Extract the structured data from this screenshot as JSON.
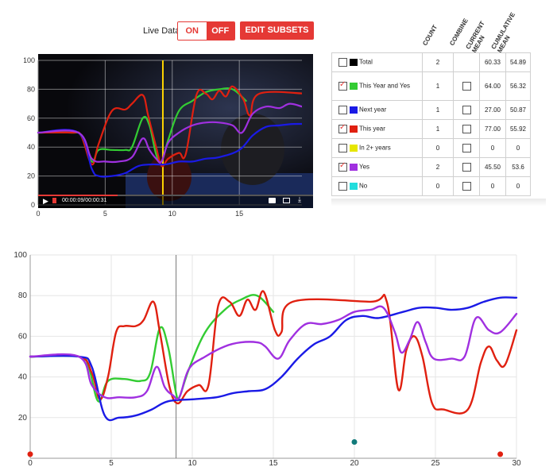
{
  "controls": {
    "live_data_label": "Live Data",
    "on_label": "ON",
    "off_label": "OFF",
    "edit_subsets_label": "EDIT SUBSETS"
  },
  "player": {
    "time_text": "00:00:09/00:00:31",
    "icons": [
      "play-icon",
      "volume-icon",
      "caption-icon",
      "image-icon",
      "download-icon"
    ]
  },
  "table": {
    "headers": [
      "COUNT",
      "COMBINE",
      "CURRENT MEAN",
      "CUMULATIVE MEAN"
    ],
    "rows": [
      {
        "checked": false,
        "color": "#000000",
        "label": "Total",
        "count": "2",
        "combine": null,
        "current": "60.33",
        "cumulative": "54.89"
      },
      {
        "checked": true,
        "color": "#33cc33",
        "label": "This Year and Yes",
        "count": "1",
        "combine": false,
        "current": "64.00",
        "cumulative": "56.32"
      },
      {
        "checked": false,
        "color": "#1a1ae6",
        "label": "Next year",
        "count": "1",
        "combine": false,
        "current": "27.00",
        "cumulative": "50.87"
      },
      {
        "checked": true,
        "color": "#e02010",
        "label": "This year",
        "count": "1",
        "combine": false,
        "current": "77.00",
        "cumulative": "55.92"
      },
      {
        "checked": false,
        "color": "#e6e600",
        "label": "In 2+ years",
        "count": "0",
        "combine": false,
        "current": "0",
        "cumulative": "0"
      },
      {
        "checked": true,
        "color": "#a030e0",
        "label": "Yes",
        "count": "2",
        "combine": false,
        "current": "45.50",
        "cumulative": "53.6"
      },
      {
        "checked": false,
        "color": "#22dddd",
        "label": "No",
        "count": "0",
        "combine": false,
        "current": "0",
        "cumulative": "0"
      }
    ]
  },
  "chart_data": [
    {
      "type": "line",
      "xlim": [
        0,
        20.5
      ],
      "ylim": [
        0,
        100
      ],
      "x_ticks": [
        0,
        5,
        10,
        15
      ],
      "y_ticks": [
        0,
        20,
        40,
        60,
        80,
        100
      ],
      "grid": true,
      "cursor_x": 9.3,
      "cursor_color": "#ffd400",
      "series": [
        {
          "color": "#33cc33",
          "points": [
            [
              0,
              50
            ],
            [
              2.5,
              50
            ],
            [
              3.2,
              48
            ],
            [
              4,
              30
            ],
            [
              4.5,
              38
            ],
            [
              5.5,
              38
            ],
            [
              6.5,
              38
            ],
            [
              7,
              40
            ],
            [
              7.8,
              60
            ],
            [
              8.3,
              55
            ],
            [
              8.8,
              35
            ],
            [
              9.2,
              30
            ],
            [
              9.7,
              45
            ],
            [
              10.5,
              65
            ],
            [
              11.5,
              72
            ],
            [
              12.5,
              78
            ],
            [
              13.5,
              80
            ],
            [
              14.5,
              80
            ],
            [
              15.5,
              72
            ]
          ]
        },
        {
          "color": "#e02010",
          "points": [
            [
              0,
              50
            ],
            [
              2.5,
              50
            ],
            [
              3.2,
              48
            ],
            [
              4,
              28
            ],
            [
              4.5,
              42
            ],
            [
              5.5,
              65
            ],
            [
              6.5,
              66
            ],
            [
              7,
              70
            ],
            [
              7.8,
              76
            ],
            [
              8.2,
              62
            ],
            [
              8.8,
              40
            ],
            [
              9.2,
              27
            ],
            [
              9.7,
              32
            ],
            [
              10.5,
              36
            ],
            [
              11,
              35
            ],
            [
              11.8,
              76
            ],
            [
              12.5,
              77
            ],
            [
              13,
              73
            ],
            [
              13.5,
              79
            ],
            [
              14,
              75
            ],
            [
              14.5,
              82
            ],
            [
              15.3,
              73
            ],
            [
              15.8,
              62
            ],
            [
              16.5,
              77
            ],
            [
              20,
              77
            ]
          ]
        },
        {
          "color": "#1a1ae6",
          "points": [
            [
              0,
              50
            ],
            [
              3,
              50
            ],
            [
              4,
              25
            ],
            [
              4.5,
              20
            ],
            [
              5.5,
              20
            ],
            [
              6.5,
              22
            ],
            [
              7.5,
              27
            ],
            [
              8.5,
              28
            ],
            [
              9.5,
              28
            ],
            [
              10.5,
              30
            ],
            [
              11.5,
              30
            ],
            [
              12.5,
              32
            ],
            [
              13.5,
              33
            ],
            [
              15,
              38
            ],
            [
              16,
              48
            ],
            [
              17,
              54
            ],
            [
              18,
              55
            ],
            [
              19,
              56
            ],
            [
              20,
              56
            ]
          ]
        },
        {
          "color": "#a030e0",
          "points": [
            [
              0,
              50
            ],
            [
              3,
              50
            ],
            [
              4,
              32
            ],
            [
              5,
              30
            ],
            [
              6,
              30
            ],
            [
              7,
              33
            ],
            [
              7.8,
              46
            ],
            [
              8.3,
              38
            ],
            [
              8.8,
              32
            ],
            [
              9.2,
              30
            ],
            [
              9.7,
              43
            ],
            [
              10.5,
              50
            ],
            [
              11.5,
              55
            ],
            [
              12.5,
              57
            ],
            [
              13.5,
              57
            ],
            [
              14.5,
              55
            ],
            [
              15.2,
              50
            ],
            [
              16,
              63
            ],
            [
              17,
              68
            ],
            [
              18,
              67
            ],
            [
              18.8,
              70
            ],
            [
              20,
              67
            ]
          ]
        }
      ]
    },
    {
      "type": "line",
      "xlim": [
        0,
        30
      ],
      "ylim": [
        0,
        100
      ],
      "x_ticks": [
        0,
        5,
        10,
        15,
        20,
        25,
        30
      ],
      "y_ticks": [
        20,
        40,
        60,
        80,
        100
      ],
      "grid": true,
      "cursor_x": 9,
      "cursor_color": "#777777",
      "markers": [
        {
          "x": 0,
          "y": 2,
          "color": "#e02010"
        },
        {
          "x": 20,
          "y": 8,
          "color": "#117a7a"
        },
        {
          "x": 29,
          "y": 2,
          "color": "#e02010"
        }
      ],
      "series": [
        {
          "color": "#33cc33",
          "points": [
            [
              0,
              50
            ],
            [
              3,
              50
            ],
            [
              3.6,
              45
            ],
            [
              4.2,
              28
            ],
            [
              4.8,
              38
            ],
            [
              5.8,
              39
            ],
            [
              6.8,
              38
            ],
            [
              7.4,
              42
            ],
            [
              8,
              64
            ],
            [
              8.5,
              55
            ],
            [
              9,
              32
            ],
            [
              9.2,
              30
            ],
            [
              9.8,
              44
            ],
            [
              10.8,
              62
            ],
            [
              12,
              73
            ],
            [
              13,
              78
            ],
            [
              14,
              80
            ],
            [
              15,
              72
            ]
          ]
        },
        {
          "color": "#e02010",
          "points": [
            [
              0,
              50
            ],
            [
              3,
              50
            ],
            [
              3.8,
              42
            ],
            [
              4.3,
              29
            ],
            [
              4.8,
              40
            ],
            [
              5.3,
              62
            ],
            [
              5.8,
              65
            ],
            [
              6.5,
              65
            ],
            [
              7,
              68
            ],
            [
              7.6,
              77
            ],
            [
              8,
              62
            ],
            [
              8.6,
              35
            ],
            [
              9.1,
              27
            ],
            [
              9.7,
              33
            ],
            [
              10.4,
              36
            ],
            [
              11,
              36
            ],
            [
              11.6,
              75
            ],
            [
              12.3,
              77
            ],
            [
              12.9,
              70
            ],
            [
              13.4,
              78
            ],
            [
              13.9,
              73
            ],
            [
              14.4,
              82
            ],
            [
              15.1,
              63
            ],
            [
              15.5,
              62
            ],
            [
              16.2,
              77
            ],
            [
              21,
              77
            ],
            [
              22,
              77
            ],
            [
              22.7,
              34
            ],
            [
              23.2,
              53
            ],
            [
              23.7,
              60
            ],
            [
              24.2,
              50
            ],
            [
              24.8,
              27
            ],
            [
              25.5,
              24
            ],
            [
              27,
              24
            ],
            [
              27.8,
              47
            ],
            [
              28.3,
              55
            ],
            [
              28.8,
              48
            ],
            [
              29.3,
              46
            ],
            [
              30,
              63
            ]
          ]
        },
        {
          "color": "#1a1ae6",
          "points": [
            [
              0,
              50
            ],
            [
              3,
              50
            ],
            [
              3.8,
              45
            ],
            [
              4.6,
              21
            ],
            [
              5.5,
              20
            ],
            [
              6.5,
              21
            ],
            [
              7.5,
              24
            ],
            [
              8.5,
              28
            ],
            [
              10,
              29
            ],
            [
              11.5,
              30
            ],
            [
              12.5,
              32
            ],
            [
              13.5,
              33
            ],
            [
              14.5,
              34
            ],
            [
              15.5,
              40
            ],
            [
              16.5,
              49
            ],
            [
              17.5,
              56
            ],
            [
              18.5,
              60
            ],
            [
              19.5,
              68
            ],
            [
              20.5,
              70
            ],
            [
              21.5,
              69
            ],
            [
              23,
              72
            ],
            [
              24,
              74
            ],
            [
              25,
              74
            ],
            [
              26,
              73
            ],
            [
              27,
              74
            ],
            [
              28,
              77
            ],
            [
              29,
              79
            ],
            [
              30,
              79
            ]
          ]
        },
        {
          "color": "#a030e0",
          "points": [
            [
              0,
              50
            ],
            [
              3,
              50
            ],
            [
              3.8,
              36
            ],
            [
              4.6,
              30
            ],
            [
              5.5,
              30
            ],
            [
              6.5,
              30
            ],
            [
              7.2,
              33
            ],
            [
              7.8,
              45
            ],
            [
              8.3,
              35
            ],
            [
              8.8,
              31
            ],
            [
              9.2,
              30
            ],
            [
              9.8,
              44
            ],
            [
              10.8,
              50
            ],
            [
              12,
              55
            ],
            [
              13,
              57
            ],
            [
              14,
              57
            ],
            [
              14.5,
              55
            ],
            [
              15.3,
              49
            ],
            [
              16,
              58
            ],
            [
              17,
              66
            ],
            [
              18,
              66
            ],
            [
              19,
              68
            ],
            [
              20,
              72
            ],
            [
              21,
              73
            ],
            [
              21.8,
              74
            ],
            [
              22.5,
              62
            ],
            [
              22.9,
              52
            ],
            [
              23.4,
              58
            ],
            [
              23.9,
              67
            ],
            [
              24.4,
              57
            ],
            [
              24.9,
              49
            ],
            [
              26,
              49
            ],
            [
              26.8,
              50
            ],
            [
              27.5,
              69
            ],
            [
              28.3,
              63
            ],
            [
              29,
              62
            ],
            [
              30,
              71
            ]
          ]
        }
      ]
    }
  ]
}
